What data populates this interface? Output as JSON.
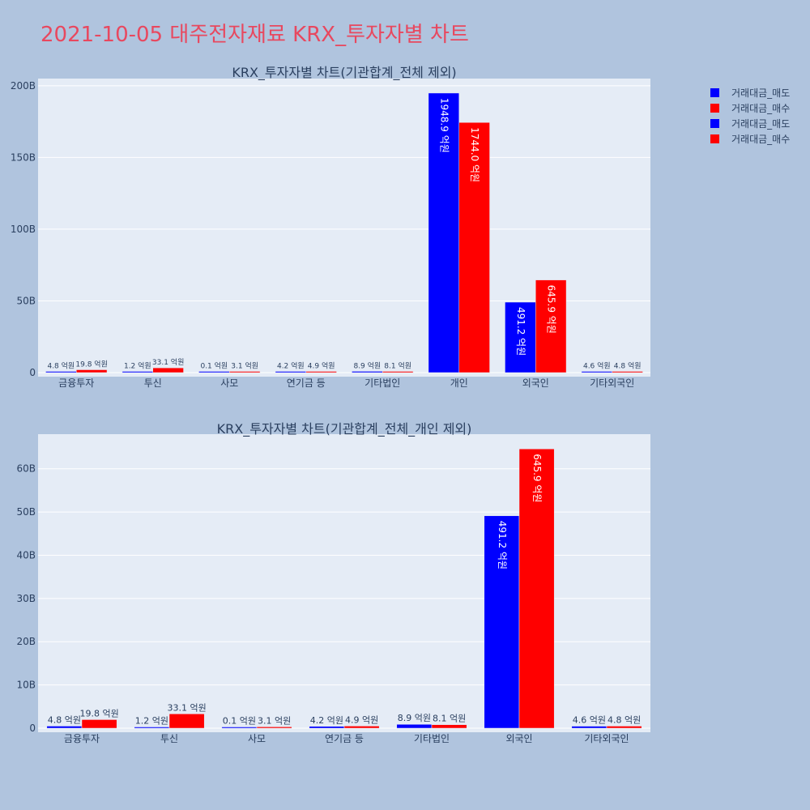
{
  "page_title": "2021-10-05 대주전자재료 KRX_투자자별 차트",
  "legend": [
    {
      "label": "거래대금_매도",
      "color": "#0000ff"
    },
    {
      "label": "거래대금_매수",
      "color": "#ff0000"
    },
    {
      "label": "거래대금_매도",
      "color": "#0000ff"
    },
    {
      "label": "거래대금_매수",
      "color": "#ff0000"
    }
  ],
  "chart_data": [
    {
      "type": "bar",
      "title": "KRX_투자자별 차트(기관합계_전체 제외)",
      "categories": [
        "금융투자",
        "투신",
        "사모",
        "연기금 등",
        "기타법인",
        "개인",
        "외국인",
        "기타외국인"
      ],
      "y_tick_values": [
        0,
        50,
        100,
        150,
        200
      ],
      "y_tick_labels": [
        "0",
        "50B",
        "100B",
        "150B",
        "200B"
      ],
      "ylim": [
        0,
        205
      ],
      "series": [
        {
          "name": "거래대금_매도",
          "color": "#0000ff",
          "values": [
            0.48,
            0.12,
            0.01,
            0.42,
            0.89,
            194.89,
            49.12,
            0.46
          ],
          "labels": [
            "4.8 억원",
            "1.2 억원",
            "0.1 억원",
            "4.2 억원",
            "8.9 억원",
            "1948.9 억원",
            "491.2 억원",
            "4.6 억원"
          ]
        },
        {
          "name": "거래대금_매수",
          "color": "#ff0000",
          "values": [
            1.98,
            3.31,
            0.31,
            0.49,
            0.81,
            174.4,
            64.59,
            0.48
          ],
          "labels": [
            "19.8 억원",
            "33.1 억원",
            "3.1 억원",
            "4.9 억원",
            "8.1 억원",
            "1744.0 억원",
            "645.9 억원",
            "4.8 억원"
          ]
        }
      ],
      "grid": true
    },
    {
      "type": "bar",
      "title": "KRX_투자자별 차트(기관합계_전체_개인 제외)",
      "categories": [
        "금융투자",
        "투신",
        "사모",
        "연기금 등",
        "기타법인",
        "외국인",
        "기타외국인"
      ],
      "y_tick_values": [
        0,
        10,
        20,
        30,
        40,
        50,
        60
      ],
      "y_tick_labels": [
        "0",
        "10B",
        "20B",
        "30B",
        "40B",
        "50B",
        "60B"
      ],
      "ylim": [
        0,
        68
      ],
      "series": [
        {
          "name": "거래대금_매도",
          "color": "#0000ff",
          "values": [
            0.48,
            0.12,
            0.01,
            0.42,
            0.89,
            49.12,
            0.46
          ],
          "labels": [
            "4.8 억원",
            "1.2 억원",
            "0.1 억원",
            "4.2 억원",
            "8.9 억원",
            "491.2 억원",
            "4.6 억원"
          ]
        },
        {
          "name": "거래대금_매수",
          "color": "#ff0000",
          "values": [
            1.98,
            3.31,
            0.31,
            0.49,
            0.81,
            64.59,
            0.48
          ],
          "labels": [
            "19.8 억원",
            "33.1 억원",
            "3.1 억원",
            "4.9 억원",
            "8.1 억원",
            "645.9 억원",
            "4.8 억원"
          ]
        }
      ],
      "grid": true
    }
  ]
}
